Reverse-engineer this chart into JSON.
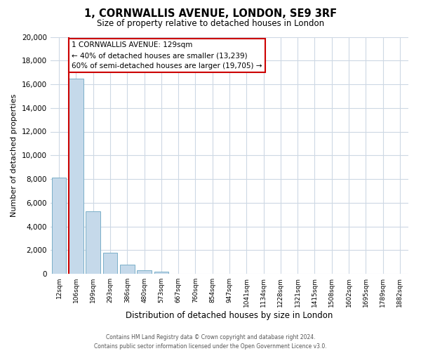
{
  "title": "1, CORNWALLIS AVENUE, LONDON, SE9 3RF",
  "subtitle": "Size of property relative to detached houses in London",
  "xlabel": "Distribution of detached houses by size in London",
  "ylabel": "Number of detached properties",
  "bar_labels": [
    "12sqm",
    "106sqm",
    "199sqm",
    "293sqm",
    "386sqm",
    "480sqm",
    "573sqm",
    "667sqm",
    "760sqm",
    "854sqm",
    "947sqm",
    "1041sqm",
    "1134sqm",
    "1228sqm",
    "1321sqm",
    "1415sqm",
    "1508sqm",
    "1602sqm",
    "1695sqm",
    "1789sqm",
    "1882sqm"
  ],
  "bar_values": [
    8100,
    16500,
    5300,
    1800,
    750,
    300,
    200,
    0,
    0,
    0,
    0,
    0,
    0,
    0,
    0,
    0,
    0,
    0,
    0,
    0,
    0
  ],
  "bar_color": "#c5d9ea",
  "bar_edge_color": "#7aafc8",
  "annotation_title": "1 CORNWALLIS AVENUE: 129sqm",
  "annotation_line1": "← 40% of detached houses are smaller (13,239)",
  "annotation_line2": "60% of semi-detached houses are larger (19,705) →",
  "annotation_box_color": "#ffffff",
  "annotation_box_edge": "#cc0000",
  "red_line_color": "#cc0000",
  "ylim": [
    0,
    20000
  ],
  "yticks": [
    0,
    2000,
    4000,
    6000,
    8000,
    10000,
    12000,
    14000,
    16000,
    18000,
    20000
  ],
  "footer_line1": "Contains HM Land Registry data © Crown copyright and database right 2024.",
  "footer_line2": "Contains public sector information licensed under the Open Government Licence v3.0.",
  "bg_color": "#ffffff",
  "grid_color": "#cdd8e4"
}
